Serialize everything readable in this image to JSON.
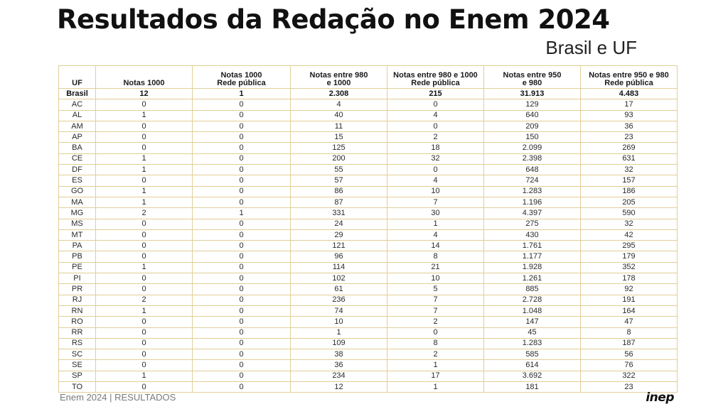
{
  "title": "Resultados da Redação no Enem 2024",
  "subtitle": "Brasil e UF",
  "table": {
    "headers": [
      [
        "UF"
      ],
      [
        "Notas 1000"
      ],
      [
        "Notas 1000",
        "Rede pública"
      ],
      [
        "Notas entre 980",
        "e 1000"
      ],
      [
        "Notas entre 980 e 1000",
        "Rede pública"
      ],
      [
        "Notas entre 950",
        "e 980"
      ],
      [
        "Notas entre 950 e 980",
        "Rede pública"
      ]
    ],
    "total": [
      "Brasil",
      "12",
      "1",
      "2.308",
      "215",
      "31.913",
      "4.483"
    ],
    "rows": [
      [
        "AC",
        "0",
        "0",
        "4",
        "0",
        "129",
        "17"
      ],
      [
        "AL",
        "1",
        "0",
        "40",
        "4",
        "640",
        "93"
      ],
      [
        "AM",
        "0",
        "0",
        "11",
        "0",
        "209",
        "36"
      ],
      [
        "AP",
        "0",
        "0",
        "15",
        "2",
        "150",
        "23"
      ],
      [
        "BA",
        "0",
        "0",
        "125",
        "18",
        "2.099",
        "269"
      ],
      [
        "CE",
        "1",
        "0",
        "200",
        "32",
        "2.398",
        "631"
      ],
      [
        "DF",
        "1",
        "0",
        "55",
        "0",
        "648",
        "32"
      ],
      [
        "ES",
        "0",
        "0",
        "57",
        "4",
        "724",
        "157"
      ],
      [
        "GO",
        "1",
        "0",
        "86",
        "10",
        "1.283",
        "186"
      ],
      [
        "MA",
        "1",
        "0",
        "87",
        "7",
        "1.196",
        "205"
      ],
      [
        "MG",
        "2",
        "1",
        "331",
        "30",
        "4.397",
        "590"
      ],
      [
        "MS",
        "0",
        "0",
        "24",
        "1",
        "275",
        "32"
      ],
      [
        "MT",
        "0",
        "0",
        "29",
        "4",
        "430",
        "42"
      ],
      [
        "PA",
        "0",
        "0",
        "121",
        "14",
        "1.761",
        "295"
      ],
      [
        "PB",
        "0",
        "0",
        "96",
        "8",
        "1.177",
        "179"
      ],
      [
        "PE",
        "1",
        "0",
        "114",
        "21",
        "1.928",
        "352"
      ],
      [
        "PI",
        "0",
        "0",
        "102",
        "10",
        "1.261",
        "178"
      ],
      [
        "PR",
        "0",
        "0",
        "61",
        "5",
        "885",
        "92"
      ],
      [
        "RJ",
        "2",
        "0",
        "236",
        "7",
        "2.728",
        "191"
      ],
      [
        "RN",
        "1",
        "0",
        "74",
        "7",
        "1.048",
        "164"
      ],
      [
        "RO",
        "0",
        "0",
        "10",
        "2",
        "147",
        "47"
      ],
      [
        "RR",
        "0",
        "0",
        "1",
        "0",
        "45",
        "8"
      ],
      [
        "RS",
        "0",
        "0",
        "109",
        "8",
        "1.283",
        "187"
      ],
      [
        "SC",
        "0",
        "0",
        "38",
        "2",
        "585",
        "56"
      ],
      [
        "SE",
        "0",
        "0",
        "36",
        "1",
        "614",
        "76"
      ],
      [
        "SP",
        "1",
        "0",
        "234",
        "17",
        "3.692",
        "322"
      ],
      [
        "TO",
        "0",
        "0",
        "12",
        "1",
        "181",
        "23"
      ]
    ]
  },
  "footer": {
    "left": "Enem 2024 | RESULTADOS",
    "logo": "inep"
  }
}
